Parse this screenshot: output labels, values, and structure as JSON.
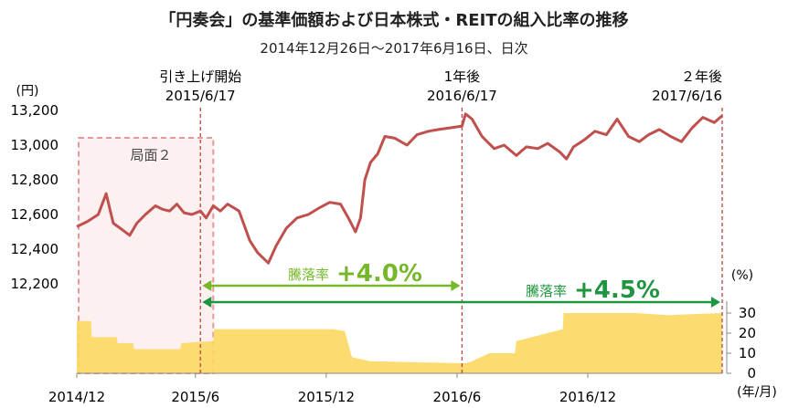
{
  "chart_data": {
    "type": "line",
    "title": "「円奏会」の基準価額および日本株式・REITの組入比率の推移",
    "subtitle": "2014年12月26日～2017年6月16日、日次",
    "y_left_unit": "(円)",
    "y_right_unit": "(%)",
    "x_unit": "(年/月)",
    "y_left_ticks": [
      "13,200",
      "13,000",
      "12,800",
      "12,600",
      "12,400",
      "12,200"
    ],
    "y_right_ticks": [
      "30",
      "20",
      "10",
      "0"
    ],
    "x_ticks": [
      "2014/12",
      "2015/6",
      "2015/12",
      "2016/6",
      "2016/12"
    ],
    "y_left_range": [
      12100,
      13200
    ],
    "y_right_range": [
      0,
      38
    ],
    "series": [
      {
        "chart_type": "line",
        "axis": "left",
        "color": "#c0504d",
        "points": [
          [
            "2014-12-26",
            12530
          ],
          [
            "2015-01-10",
            12560
          ],
          [
            "2015-01-25",
            12600
          ],
          [
            "2015-02-05",
            12720
          ],
          [
            "2015-02-15",
            12550
          ],
          [
            "2015-02-25",
            12520
          ],
          [
            "2015-03-10",
            12480
          ],
          [
            "2015-03-20",
            12550
          ],
          [
            "2015-04-01",
            12600
          ],
          [
            "2015-04-15",
            12650
          ],
          [
            "2015-04-25",
            12630
          ],
          [
            "2015-05-05",
            12620
          ],
          [
            "2015-05-15",
            12660
          ],
          [
            "2015-05-25",
            12610
          ],
          [
            "2015-06-05",
            12600
          ],
          [
            "2015-06-17",
            12620
          ],
          [
            "2015-06-25",
            12580
          ],
          [
            "2015-07-05",
            12650
          ],
          [
            "2015-07-15",
            12620
          ],
          [
            "2015-07-25",
            12660
          ],
          [
            "2015-08-10",
            12620
          ],
          [
            "2015-08-25",
            12450
          ],
          [
            "2015-09-05",
            12380
          ],
          [
            "2015-09-20",
            12320
          ],
          [
            "2015-10-01",
            12420
          ],
          [
            "2015-10-15",
            12520
          ],
          [
            "2015-10-30",
            12580
          ],
          [
            "2015-11-15",
            12600
          ],
          [
            "2015-12-01",
            12640
          ],
          [
            "2015-12-15",
            12670
          ],
          [
            "2015-12-30",
            12660
          ],
          [
            "2016-01-10",
            12580
          ],
          [
            "2016-01-20",
            12500
          ],
          [
            "2016-01-27",
            12580
          ],
          [
            "2016-02-02",
            12800
          ],
          [
            "2016-02-10",
            12900
          ],
          [
            "2016-02-20",
            12950
          ],
          [
            "2016-03-01",
            13050
          ],
          [
            "2016-03-15",
            13040
          ],
          [
            "2016-04-01",
            13000
          ],
          [
            "2016-04-15",
            13060
          ],
          [
            "2016-05-01",
            13080
          ],
          [
            "2016-05-15",
            13090
          ],
          [
            "2016-06-01",
            13100
          ],
          [
            "2016-06-17",
            13110
          ],
          [
            "2016-06-22",
            13180
          ],
          [
            "2016-07-01",
            13150
          ],
          [
            "2016-07-15",
            13050
          ],
          [
            "2016-08-01",
            12980
          ],
          [
            "2016-08-15",
            13000
          ],
          [
            "2016-09-01",
            12940
          ],
          [
            "2016-09-15",
            12990
          ],
          [
            "2016-10-01",
            12980
          ],
          [
            "2016-10-15",
            13010
          ],
          [
            "2016-11-01",
            12960
          ],
          [
            "2016-11-10",
            12920
          ],
          [
            "2016-11-20",
            12990
          ],
          [
            "2016-12-05",
            13030
          ],
          [
            "2016-12-20",
            13080
          ],
          [
            "2017-01-05",
            13060
          ],
          [
            "2017-01-20",
            13150
          ],
          [
            "2017-02-05",
            13050
          ],
          [
            "2017-02-20",
            13020
          ],
          [
            "2017-03-05",
            13060
          ],
          [
            "2017-03-20",
            13090
          ],
          [
            "2017-04-05",
            13050
          ],
          [
            "2017-04-20",
            13020
          ],
          [
            "2017-05-05",
            13100
          ],
          [
            "2017-05-20",
            13160
          ],
          [
            "2017-06-05",
            13130
          ],
          [
            "2017-06-16",
            13170
          ]
        ]
      },
      {
        "chart_type": "area",
        "axis": "right",
        "color": "#fcd862",
        "points": [
          [
            "2014-12-26",
            26
          ],
          [
            "2015-01-15",
            26
          ],
          [
            "2015-01-16",
            18
          ],
          [
            "2015-02-20",
            18
          ],
          [
            "2015-02-21",
            15
          ],
          [
            "2015-03-15",
            15
          ],
          [
            "2015-03-16",
            12
          ],
          [
            "2015-05-20",
            12
          ],
          [
            "2015-05-21",
            15
          ],
          [
            "2015-07-05",
            16
          ],
          [
            "2015-07-06",
            22
          ],
          [
            "2015-10-01",
            22
          ],
          [
            "2015-12-20",
            22
          ],
          [
            "2016-01-05",
            21
          ],
          [
            "2016-01-15",
            8
          ],
          [
            "2016-02-10",
            6
          ],
          [
            "2016-06-22",
            5
          ],
          [
            "2016-07-01",
            6
          ],
          [
            "2016-07-25",
            10
          ],
          [
            "2016-08-30",
            10
          ],
          [
            "2016-09-01",
            16
          ],
          [
            "2016-11-05",
            22
          ],
          [
            "2016-11-06",
            30
          ],
          [
            "2017-02-15",
            30
          ],
          [
            "2017-04-01",
            29
          ],
          [
            "2017-06-16",
            30
          ]
        ]
      }
    ],
    "highlight_box": {
      "label": "局面２",
      "from": "2014-12-26",
      "to": "2015-07-05"
    },
    "vertical_markers": [
      {
        "date": "2015-06-17",
        "label1": "引き上げ開始",
        "label2": "2015/6/17"
      },
      {
        "date": "2016-06-17",
        "label1": "1年後",
        "label2": "2016/6/17"
      },
      {
        "date": "2017-06-16",
        "label1": "２年後",
        "label2": "2017/6/16"
      }
    ],
    "arrows": [
      {
        "from": "2015-06-17",
        "to": "2016-06-17",
        "prefix": "騰落率",
        "value": "+4.0%",
        "color": "#76b82a"
      },
      {
        "from": "2015-06-17",
        "to": "2017-06-16",
        "prefix": "騰落率",
        "value": "+4.5%",
        "color": "#1e9640"
      }
    ]
  }
}
